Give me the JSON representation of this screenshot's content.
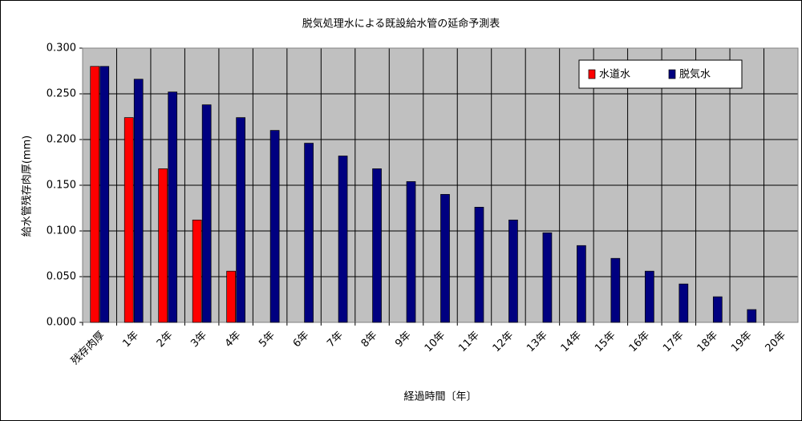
{
  "chart_data": {
    "type": "bar",
    "title": "脱気処理水による既設給水管の延命予測表",
    "x_label": "経過時間〔年〕",
    "y_label": "給水管残存肉厚(mm)",
    "categories": [
      "残存肉厚",
      "1年",
      "2年",
      "3年",
      "4年",
      "5年",
      "6年",
      "7年",
      "8年",
      "9年",
      "10年",
      "11年",
      "12年",
      "13年",
      "14年",
      "15年",
      "16年",
      "17年",
      "18年",
      "19年",
      "20年"
    ],
    "series": [
      {
        "name": "水道水",
        "color": "#ff0000",
        "values": [
          0.28,
          0.224,
          0.168,
          0.112,
          0.056,
          null,
          null,
          null,
          null,
          null,
          null,
          null,
          null,
          null,
          null,
          null,
          null,
          null,
          null,
          null,
          null
        ]
      },
      {
        "name": "脱気水",
        "color": "#000080",
        "values": [
          0.28,
          0.266,
          0.252,
          0.238,
          0.224,
          0.21,
          0.196,
          0.182,
          0.168,
          0.154,
          0.14,
          0.126,
          0.112,
          0.098,
          0.084,
          0.07,
          0.056,
          0.042,
          0.028,
          0.014,
          0
        ]
      }
    ],
    "ylim": [
      0,
      0.3
    ],
    "yticks": [
      {
        "value": 0,
        "label": "0.000"
      },
      {
        "value": 0.05,
        "label": "0.050"
      },
      {
        "value": 0.1,
        "label": "0.100"
      },
      {
        "value": 0.15,
        "label": "0.150"
      },
      {
        "value": 0.2,
        "label": "0.200"
      },
      {
        "value": 0.25,
        "label": "0.250"
      },
      {
        "value": 0.3,
        "label": "0.300"
      }
    ],
    "grid": true,
    "legend": "top-right"
  }
}
